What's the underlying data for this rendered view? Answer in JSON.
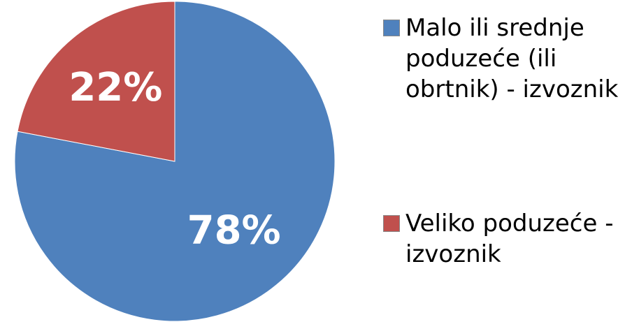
{
  "chart_data": {
    "type": "pie",
    "categories": [
      "Malo ili srednje poduzeće (ili obrtnik) - izvoznik",
      "Veliko poduzeće - izvoznik"
    ],
    "values": [
      78,
      22
    ],
    "value_labels": [
      "78%",
      "22%"
    ],
    "colors": [
      "#4f81bd",
      "#c0504d"
    ],
    "legend": "right"
  }
}
